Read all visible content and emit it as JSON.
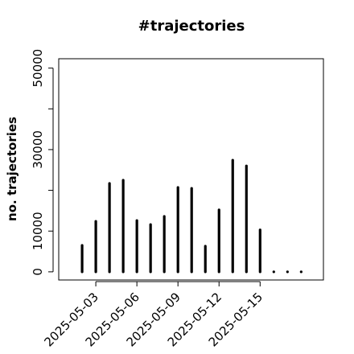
{
  "chart_data": {
    "type": "bar",
    "title": "#trajectories",
    "y_label": "no. trajectories",
    "x": [
      "2025-05-02",
      "2025-05-03",
      "2025-05-04",
      "2025-05-05",
      "2025-05-06",
      "2025-05-07",
      "2025-05-08",
      "2025-05-09",
      "2025-05-10",
      "2025-05-11",
      "2025-05-12",
      "2025-05-13",
      "2025-05-14",
      "2025-05-15",
      "2025-05-16",
      "2025-05-17",
      "2025-05-18"
    ],
    "values": [
      6500,
      12400,
      21700,
      22500,
      12600,
      11600,
      13600,
      20700,
      20500,
      6300,
      15200,
      27400,
      26000,
      10300,
      0,
      0,
      0
    ],
    "color": "#000000",
    "xlim": [
      "2025-04-30T07:00",
      "2025-05-19T15:00"
    ],
    "xticks": [
      "2025-05-03",
      "2025-05-06",
      "2025-05-09",
      "2025-05-12",
      "2025-05-15"
    ],
    "ylim": [
      -2000,
      52300
    ],
    "yticks": [
      0,
      10000,
      30000,
      50000
    ],
    "yticks_unlabeled": [
      20000,
      40000
    ]
  }
}
